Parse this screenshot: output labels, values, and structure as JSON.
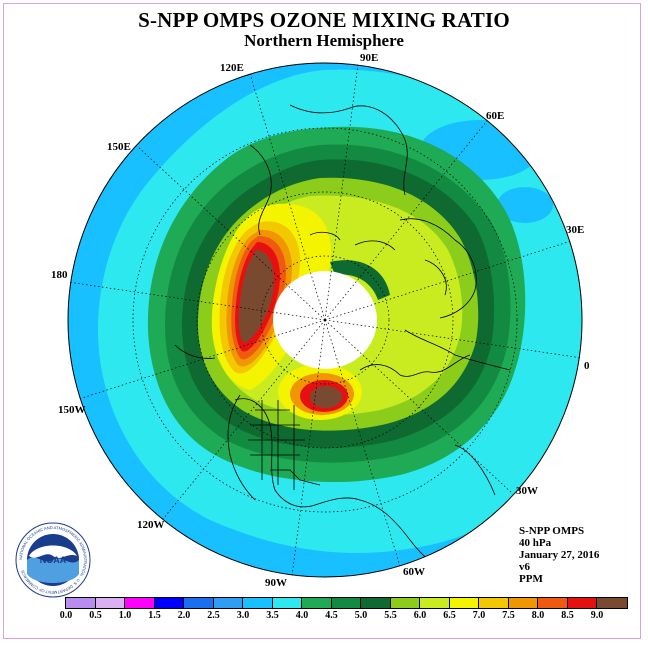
{
  "title": "S-NPP OMPS OZONE MIXING RATIO",
  "subtitle": "Northern Hemisphere",
  "info": {
    "instrument": "S-NPP OMPS",
    "level": "40 hPa",
    "date": "January 27, 2016",
    "version": "v6",
    "units": "PPM"
  },
  "longitude_labels": [
    "90E",
    "60E",
    "30E",
    "0",
    "30W",
    "60W",
    "90W",
    "120W",
    "150W",
    "180",
    "150E",
    "120E"
  ],
  "colorbar": {
    "ticks": [
      "0.0",
      "0.5",
      "1.0",
      "1.5",
      "2.0",
      "2.5",
      "3.0",
      "3.5",
      "4.0",
      "4.5",
      "5.0",
      "5.5",
      "6.0",
      "6.5",
      "7.0",
      "7.5",
      "8.0",
      "8.5",
      "9.0"
    ],
    "colors": [
      "#b98cf0",
      "#dab0f0",
      "#ff00ff",
      "#0000ff",
      "#1a6ef0",
      "#2e9ef5",
      "#18c0ff",
      "#2ee8f0",
      "#1faa55",
      "#138a42",
      "#0e6a30",
      "#8ccc1a",
      "#c8ec20",
      "#f4f400",
      "#f4c800",
      "#f09600",
      "#f05a10",
      "#e61010",
      "#7a4a30"
    ]
  },
  "logo": {
    "text": "NOAA",
    "ring_text": "NATIONAL OCEANIC AND ATMOSPHERIC ADMINISTRATION · U.S. DEPARTMENT OF COMMERCE"
  }
}
